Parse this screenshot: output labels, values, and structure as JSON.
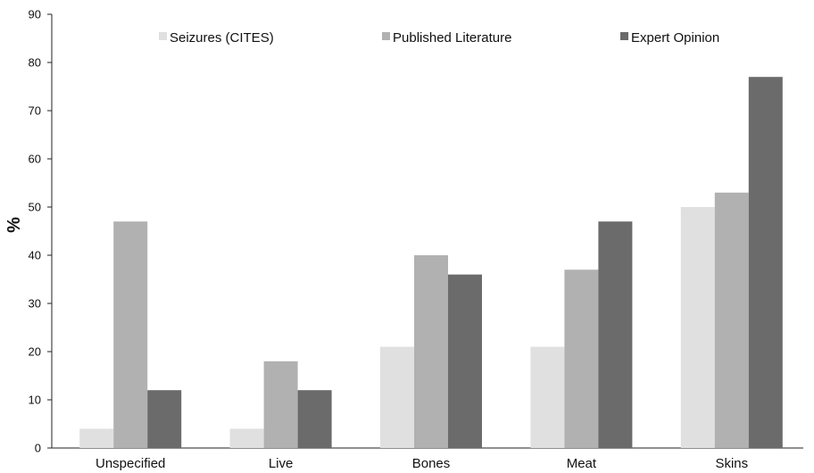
{
  "chart_data": {
    "type": "bar",
    "title": "",
    "xlabel": "",
    "ylabel": "%",
    "ylim": [
      0,
      90
    ],
    "yticks": [
      0,
      10,
      20,
      30,
      40,
      50,
      60,
      70,
      80,
      90
    ],
    "grid": false,
    "legend_position": "top",
    "categories": [
      "Unspecified",
      "Live",
      "Bones",
      "Meat",
      "Skins"
    ],
    "series": [
      {
        "name": "Seizures (CITES)",
        "color": "#e0e0e0",
        "values": [
          4,
          4,
          21,
          21,
          50
        ]
      },
      {
        "name": "Published Literature",
        "color": "#b1b1b1",
        "values": [
          47,
          18,
          40,
          37,
          53
        ]
      },
      {
        "name": "Expert Opinion",
        "color": "#6b6b6b",
        "values": [
          12,
          12,
          36,
          47,
          77
        ]
      }
    ]
  }
}
